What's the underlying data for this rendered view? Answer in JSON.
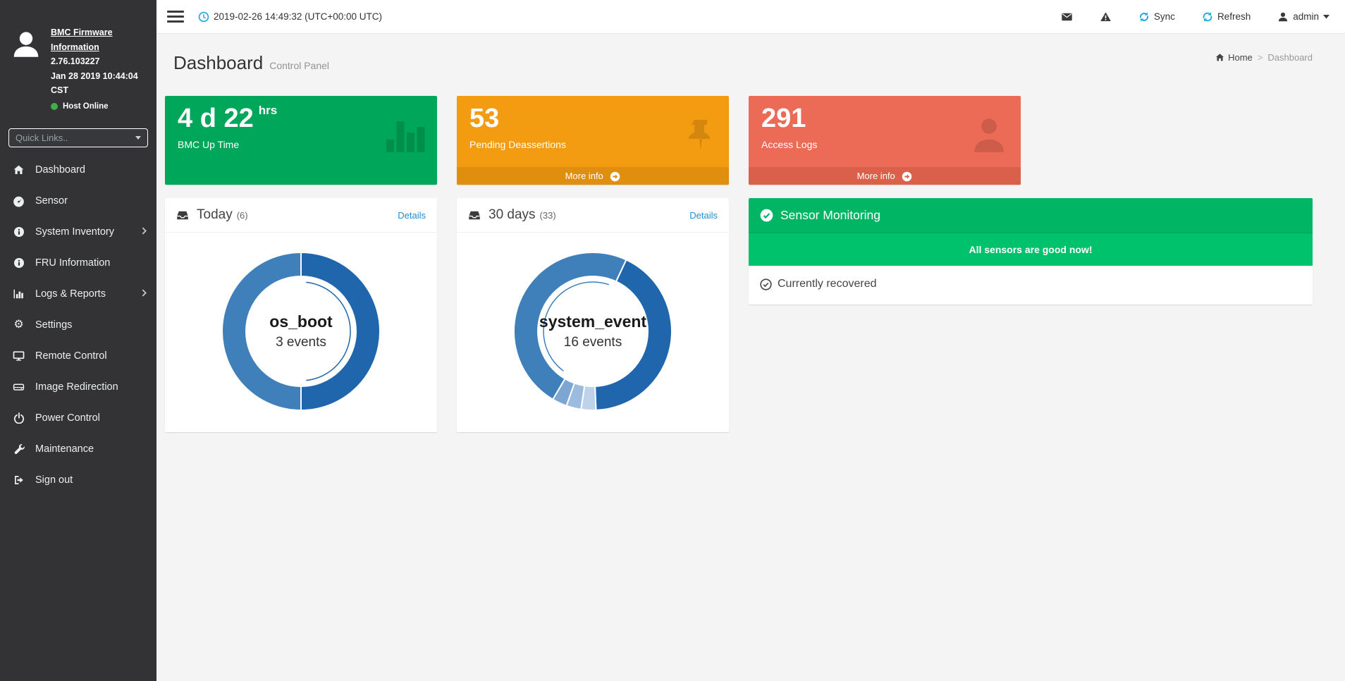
{
  "colors": {
    "sidebar_bg": "#333336",
    "host_online_dot": "#3fae49",
    "stat_green": "#00a65a",
    "stat_orange": "#f39c12",
    "stat_orange_footer": "#e08e0e",
    "stat_red": "#ec6b56",
    "stat_red_footer": "#da604c",
    "sensor_header_green": "#00b564",
    "sensor_body_green": "#00c16c",
    "link_blue": "#1f8fd5",
    "topbar_icon_blue": "#1ea6dd",
    "donut_dark_blue": "#1f66ad",
    "donut_medium_blue": "#3f80ba"
  },
  "sidebar": {
    "profile": {
      "avatar_icon": "user-avatar-icon",
      "title": "BMC Firmware Information",
      "version": "2.76.103227",
      "build_date": "Jan 28 2019 10:44:04 CST",
      "host_status": "Host Online"
    },
    "quick_links_placeholder": "Quick Links..",
    "items": [
      {
        "label": "Dashboard",
        "icon": "home-icon",
        "has_submenu": false
      },
      {
        "label": "Sensor",
        "icon": "gauge-icon",
        "has_submenu": false
      },
      {
        "label": "System Inventory",
        "icon": "info-circle-icon",
        "has_submenu": true
      },
      {
        "label": "FRU Information",
        "icon": "info-circle-icon",
        "has_submenu": false
      },
      {
        "label": "Logs & Reports",
        "icon": "bar-chart-icon",
        "has_submenu": true
      },
      {
        "label": "Settings",
        "icon": "gear-icon",
        "has_submenu": false
      },
      {
        "label": "Remote Control",
        "icon": "desktop-icon",
        "has_submenu": false
      },
      {
        "label": "Image Redirection",
        "icon": "disk-drive-icon",
        "has_submenu": false
      },
      {
        "label": "Power Control",
        "icon": "power-icon",
        "has_submenu": false
      },
      {
        "label": "Maintenance",
        "icon": "wrench-icon",
        "has_submenu": false
      },
      {
        "label": "Sign out",
        "icon": "sign-out-icon",
        "has_submenu": false
      }
    ]
  },
  "topbar": {
    "datetime": "2019-02-26 14:49:32 (UTC+00:00 UTC)",
    "clock_icon": "clock-icon",
    "envelope_icon": "envelope-icon",
    "warning_icon": "warning-icon",
    "sync_label": "Sync",
    "refresh_label": "Refresh",
    "user_label": "admin"
  },
  "header": {
    "title": "Dashboard",
    "subtitle": "Control Panel",
    "breadcrumb": {
      "home": "Home",
      "separator": ">",
      "current": "Dashboard"
    }
  },
  "stat_cards": [
    {
      "value": "4 d 22",
      "value_suffix": "hrs",
      "label": "BMC Up Time",
      "icon": "bar-chart-icon",
      "color": "#00a65a",
      "more_info_label": ""
    },
    {
      "value": "53",
      "value_suffix": "",
      "label": "Pending Deassertions",
      "icon": "pushpin-icon",
      "color": "#f39c12",
      "more_info_label": "More info"
    },
    {
      "value": "291",
      "value_suffix": "",
      "label": "Access Logs",
      "icon": "user-icon",
      "color": "#ec6b56",
      "more_info_label": "More info"
    }
  ],
  "event_panels": [
    {
      "title": "Today",
      "count_display": "(6)",
      "details_label": "Details",
      "panel_icon": "inbox-icon",
      "center_label": "os_boot",
      "center_sub": "3 events",
      "chart": {
        "type": "donut",
        "total_events": 6,
        "rotation": 0,
        "segments": [
          {
            "name": "os_boot",
            "value": 3,
            "color": "#1f66ad",
            "highlighted": true
          },
          {
            "name": "other",
            "value": 3,
            "color": "#3f80ba",
            "highlighted": false
          }
        ]
      }
    },
    {
      "title": "30 days",
      "count_display": "(33)",
      "details_label": "Details",
      "panel_icon": "inbox-icon",
      "center_label": "system_event",
      "center_sub": "16 events",
      "chart": {
        "type": "donut",
        "total_events": 33,
        "rotation": 25,
        "segments": [
          {
            "name": "other-1",
            "value": 14,
            "color": "#1f66ad",
            "highlighted": false
          },
          {
            "name": "other-2",
            "value": 1,
            "color": "#bed2e9",
            "highlighted": false
          },
          {
            "name": "other-3",
            "value": 1,
            "color": "#9cbcdf",
            "highlighted": false
          },
          {
            "name": "other-4",
            "value": 1,
            "color": "#7da6d2",
            "highlighted": false
          },
          {
            "name": "system_event",
            "value": 16,
            "color": "#3f80ba",
            "highlighted": true
          }
        ]
      }
    }
  ],
  "sensor_panel": {
    "title": "Sensor Monitoring",
    "title_icon": "check-circle-icon",
    "status_message": "All sensors are good now!",
    "row_icon": "check-circle-outline-icon",
    "row_label": "Currently recovered"
  }
}
